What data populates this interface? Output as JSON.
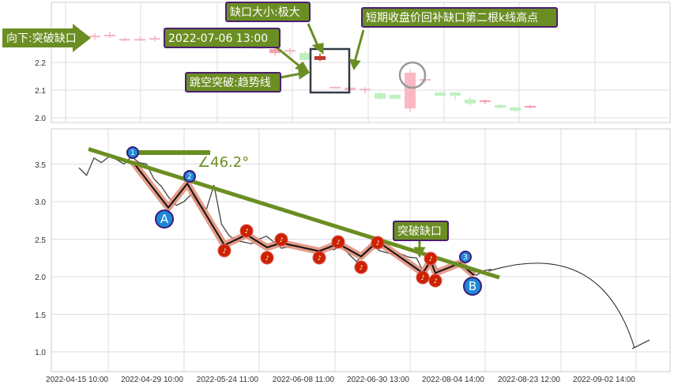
{
  "chart_data": [
    {
      "type": "candlestick",
      "panel": "top",
      "ylim": [
        1.98,
        2.42
      ],
      "yticks": [
        "2.0",
        "2.1",
        "2.2"
      ],
      "grid": true,
      "candles": [
        {
          "i": 0,
          "open": 2.297,
          "close": 2.295,
          "high": 2.306,
          "low": 2.283,
          "color": "#f4b6c2"
        },
        {
          "i": 1,
          "open": 2.3,
          "close": 2.298,
          "high": 2.311,
          "low": 2.289,
          "color": "#f4b6c2"
        },
        {
          "i": 2,
          "open": 2.285,
          "close": 2.283,
          "high": 2.291,
          "low": 2.277,
          "color": "#f4b6c2"
        },
        {
          "i": 3,
          "open": 2.285,
          "close": 2.283,
          "high": 2.291,
          "low": 2.277,
          "color": "#f4b6c2"
        },
        {
          "i": 4,
          "open": 2.288,
          "close": 2.286,
          "high": 2.297,
          "low": 2.277,
          "color": "#f4b6c2"
        },
        {
          "i": 11,
          "open": 2.256,
          "close": 2.253,
          "high": 2.26,
          "low": 2.249,
          "color": "#f4b6c2"
        },
        {
          "i": 12,
          "open": 2.249,
          "close": 2.234,
          "high": 2.26,
          "low": 2.226,
          "color": "#f4a0b0"
        },
        {
          "i": 13,
          "open": 2.245,
          "close": 2.243,
          "high": 2.254,
          "low": 2.226,
          "color": "#f4b6c2"
        },
        {
          "i": 14,
          "open": 2.209,
          "close": 2.234,
          "high": 2.24,
          "low": 2.205,
          "color": "#bff0bf"
        },
        {
          "i": 15,
          "open": 2.223,
          "close": 2.209,
          "high": 2.232,
          "low": 2.205,
          "color": "#c0392b"
        },
        {
          "i": 16,
          "open": 2.112,
          "close": 2.11,
          "high": 2.113,
          "low": 2.109,
          "color": "#f4b6c2"
        },
        {
          "i": 17,
          "open": 2.109,
          "close": 2.1,
          "high": 2.112,
          "low": 2.095,
          "color": "#f4b6c2"
        },
        {
          "i": 18,
          "open": 2.105,
          "close": 2.103,
          "high": 2.111,
          "low": 2.089,
          "color": "#f4b6c2"
        },
        {
          "i": 19,
          "open": 2.089,
          "close": 2.069,
          "high": 2.092,
          "low": 2.066,
          "color": "#bff0bf"
        },
        {
          "i": 20,
          "open": 2.083,
          "close": 2.069,
          "high": 2.086,
          "low": 2.066,
          "color": "#bff0bf"
        },
        {
          "i": 21,
          "open": 2.034,
          "close": 2.163,
          "high": 2.174,
          "low": 2.02,
          "color": "#f9b8c4"
        },
        {
          "i": 22,
          "open": 2.14,
          "close": 2.138,
          "high": 2.169,
          "low": 2.126,
          "color": "#f4b6c2"
        },
        {
          "i": 23,
          "open": 2.091,
          "close": 2.08,
          "high": 2.094,
          "low": 2.076,
          "color": "#bff0bf"
        },
        {
          "i": 24,
          "open": 2.091,
          "close": 2.08,
          "high": 2.094,
          "low": 2.066,
          "color": "#bff0bf"
        },
        {
          "i": 25,
          "open": 2.066,
          "close": 2.052,
          "high": 2.074,
          "low": 2.046,
          "color": "#bff0bf"
        },
        {
          "i": 26,
          "open": 2.063,
          "close": 2.057,
          "high": 2.066,
          "low": 2.049,
          "color": "#f4a0b0"
        },
        {
          "i": 27,
          "open": 2.046,
          "close": 2.037,
          "high": 2.049,
          "low": 2.034,
          "color": "#bff0bf"
        },
        {
          "i": 28,
          "open": 2.037,
          "close": 2.026,
          "high": 2.04,
          "low": 2.02,
          "color": "#bff0bf"
        },
        {
          "i": 29,
          "open": 2.043,
          "close": 2.037,
          "high": 2.046,
          "low": 2.034,
          "color": "#f4a0b0"
        }
      ]
    },
    {
      "type": "line",
      "panel": "bottom",
      "ylim": [
        0.75,
        3.95
      ],
      "yticks": [
        "1.0",
        "1.5",
        "2.0",
        "2.5",
        "3.0",
        "3.5"
      ],
      "xticks": [
        "2022-04-15 10:00",
        "2022-04-29 10:00",
        "2022-05-24 11:00",
        "2022-06-08 11:00",
        "2022-06-30 13:00",
        "2022-08-04 14:00",
        "2022-08-23 12:00",
        "2022-09-02 14:00"
      ],
      "grid": true,
      "price_series": [
        3.45,
        3.35,
        3.58,
        3.52,
        3.6,
        3.56,
        3.5,
        3.6,
        3.52,
        3.5,
        3.3,
        3.2,
        3.05,
        2.95,
        3.0,
        3.1,
        2.95,
        2.9,
        3.22,
        2.7,
        2.55,
        2.48,
        2.46,
        2.44,
        2.5,
        2.54,
        2.46,
        2.38,
        2.4,
        2.42,
        2.38,
        2.36,
        2.35,
        2.38,
        2.36,
        2.42,
        2.3,
        2.2,
        2.3,
        2.44,
        2.35,
        2.32,
        2.3,
        2.3,
        2.26,
        2.25,
        2.05,
        2.2,
        2.08,
        2.1,
        2.15,
        2.18,
        2.06,
        2.02,
        2.08,
        2.1
      ],
      "zigzag": [
        3.53,
        2.92,
        3.24,
        2.42,
        2.56,
        2.39,
        2.45,
        2.34,
        2.44,
        2.27,
        2.47,
        2.05,
        2.21,
        2.05,
        2.18,
        2.02
      ],
      "trendline": {
        "from": 3.7,
        "to": 1.99,
        "color": "#6b8e23"
      },
      "angle_label": "∠46.2°",
      "wave_labels": [
        "1",
        "2",
        "3",
        "A",
        "B"
      ]
    }
  ],
  "annotations": {
    "direction": "向下:突破缺口",
    "gap_size": "缺口大小:极大",
    "gap_date": "2022-07-06 13:00",
    "gap_break": "跳空突破:趋势线",
    "fill_note": "短期收盘价回补缺口第二根k线高点",
    "break_gap": "突破缺口"
  },
  "colors": {
    "callout_bg": "#6b8e23",
    "callout_border": "#4b1e6e",
    "zigzag_halo": "#e08b76",
    "marker_red": "#cc2200",
    "marker_blue": "#1e88d8"
  }
}
